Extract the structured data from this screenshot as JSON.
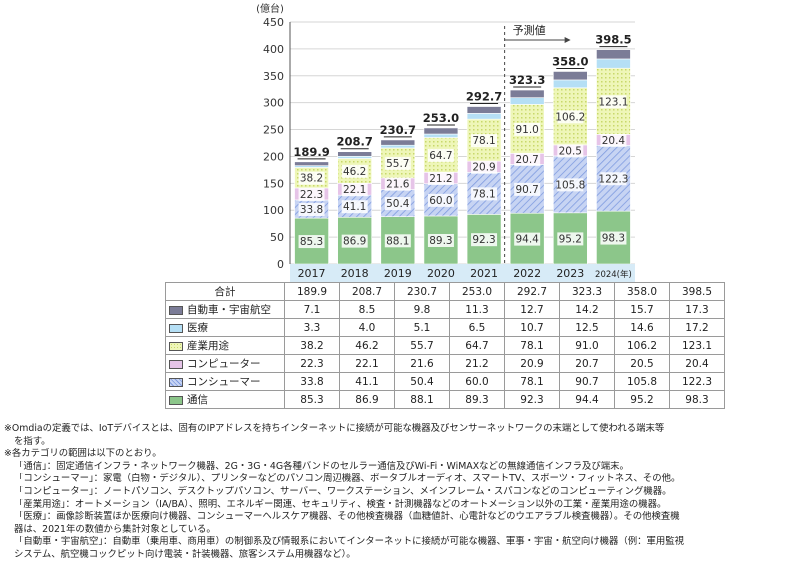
{
  "chart_data": {
    "type": "bar",
    "stacked": true,
    "unit_label": "(億台)",
    "categories": [
      "2017",
      "2018",
      "2019",
      "2020",
      "2021",
      "2022",
      "2023",
      "2024(年)"
    ],
    "ylim": [
      0,
      450
    ],
    "yticks": [
      "0",
      "50",
      "100",
      "150",
      "200",
      "250",
      "300",
      "350",
      "400",
      "450"
    ],
    "forecast_label": "予測値",
    "series": [
      {
        "name": "通信",
        "color": "#8cc68a",
        "pattern": "solid",
        "values": [
          85.3,
          86.9,
          88.1,
          89.3,
          92.3,
          94.4,
          95.2,
          98.3
        ]
      },
      {
        "name": "コンシューマー",
        "color": "#b9c9ef",
        "pattern": "hatch",
        "values": [
          33.8,
          41.1,
          50.4,
          60.0,
          78.1,
          90.7,
          105.8,
          122.3
        ]
      },
      {
        "name": "コンピューター",
        "color": "#e6c4e8",
        "pattern": "solid",
        "values": [
          22.3,
          22.1,
          21.6,
          21.2,
          20.9,
          20.7,
          20.5,
          20.4
        ]
      },
      {
        "name": "産業用途",
        "color": "#eef6b8",
        "pattern": "dots",
        "values": [
          38.2,
          46.2,
          55.7,
          64.7,
          78.1,
          91.0,
          106.2,
          123.1
        ]
      },
      {
        "name": "医療",
        "color": "#b5dff5",
        "pattern": "solid",
        "values": [
          3.3,
          4.0,
          5.1,
          6.5,
          10.7,
          12.5,
          14.6,
          17.2
        ]
      },
      {
        "name": "自動車・宇宙航空",
        "color": "#7b7c97",
        "pattern": "solid",
        "values": [
          7.1,
          8.5,
          9.8,
          11.3,
          12.7,
          14.2,
          15.7,
          17.3
        ]
      }
    ],
    "totals": [
      "189.9",
      "208.7",
      "230.7",
      "253.0",
      "292.7",
      "323.3",
      "358.0",
      "398.5"
    ]
  },
  "table": {
    "total_label": "合計",
    "rows_order": [
      5,
      4,
      3,
      2,
      1,
      0
    ]
  },
  "notes": [
    "※Omdiaの定義では、IoTデバイスとは、固有のIPアドレスを持ちインターネットに接続が可能な機器及びセンサーネットワークの末端として使われる端末等",
    "を指す。",
    "※各カテゴリの範囲は以下のとおり。",
    "「通信」：固定通信インフラ・ネットワーク機器、2G・3G・4G各種バンドのセルラー通信及びWi-Fi・WiMAXなどの無線通信インフラ及び端末。",
    "「コンシューマー」：家電（白物・デジタル）、プリンターなどのパソコン周辺機器、ポータブルオーディオ、スマートTV、スポーツ・フィットネス、その他。",
    "「コンピューター」：ノートパソコン、デスクトップパソコン、サーバー、ワークステーション、メインフレーム・スパコンなどのコンピューティング機器。",
    "「産業用途」：オートメーション（IA/BA）、照明、エネルギー関連、セキュリティ、検査・計測機器などのオートメーション以外の工業・産業用途の機器。",
    "「医療」：画像診断装置ほか医療向け機器、コンシューマーヘルスケア機器、その他検査機器（血糖値計、心電計などのウエアラブル検査機器）。その他検査機",
    "器は、2021年の数値から集計対象としている。",
    "「自動車・宇宙航空」：自動車（乗用車、商用車）の制御系及び情報系においてインターネットに接続が可能な機器、軍事・宇宙・航空向け機器（例：軍用監視",
    "システム、航空機コックピット向け電装・計装機器、旅客システム用機器など）。"
  ]
}
